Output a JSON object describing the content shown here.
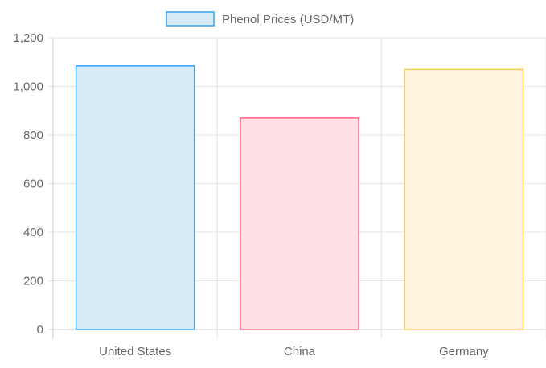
{
  "chart_data": {
    "type": "bar",
    "categories": [
      "United States",
      "China",
      "Germany"
    ],
    "series": [
      {
        "name": "Phenol Prices (USD/MT)",
        "values": [
          1085,
          870,
          1070
        ]
      }
    ],
    "ylim": [
      0,
      1200
    ],
    "yticks": [
      "0",
      "200",
      "400",
      "600",
      "800",
      "1,000",
      "1,200"
    ],
    "ytick_values": [
      0,
      200,
      400,
      600,
      800,
      1000,
      1200
    ],
    "grid": true,
    "legend_position": "top",
    "colors": {
      "fills": [
        "#d7ebf9",
        "#ffe0e6",
        "#fff4dd"
      ],
      "borders": [
        "#36a2eb",
        "#ff6384",
        "#ffce56"
      ],
      "legend_fill": "#d7ebf9",
      "legend_border": "#36a2eb"
    }
  }
}
